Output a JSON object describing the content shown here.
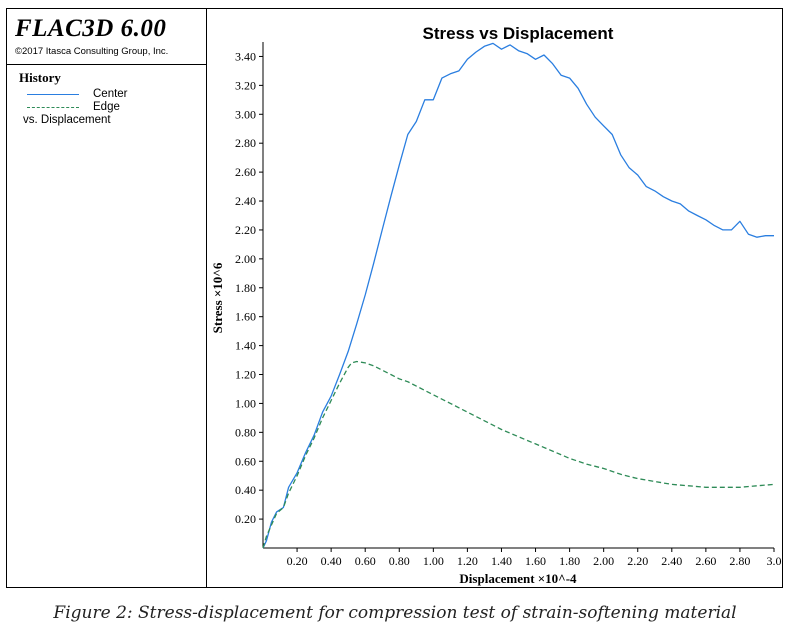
{
  "app": {
    "title": "FLAC3D 6.00",
    "copyright": "©2017 Itasca Consulting Group, Inc."
  },
  "legend": {
    "heading": "History",
    "vs_label": "vs. Displacement"
  },
  "caption": "Figure 2: Stress-displacement for compression test of strain-softening material",
  "colors": {
    "center": "#2a7ee0",
    "edge": "#2e8b57",
    "axis": "#000000"
  },
  "chart_data": {
    "type": "line",
    "title": "Stress vs Displacement",
    "xlabel": "Displacement ×10^-4",
    "ylabel": "Stress ×10^6",
    "xlim": [
      0.0,
      3.0
    ],
    "ylim": [
      0.0,
      3.5
    ],
    "xticks": [
      "0.20",
      "0.40",
      "0.60",
      "0.80",
      "1.00",
      "1.20",
      "1.40",
      "1.60",
      "1.80",
      "2.00",
      "2.20",
      "2.40",
      "2.60",
      "2.80",
      "3.0"
    ],
    "yticks": [
      "0.20",
      "0.40",
      "0.60",
      "0.80",
      "1.00",
      "1.20",
      "1.40",
      "1.60",
      "1.80",
      "2.00",
      "2.20",
      "2.40",
      "2.60",
      "2.80",
      "3.00",
      "3.20",
      "3.40"
    ],
    "grid": false,
    "series": [
      {
        "name": "Center",
        "style": "solid",
        "x": [
          0.0,
          0.02,
          0.05,
          0.08,
          0.12,
          0.15,
          0.2,
          0.25,
          0.3,
          0.35,
          0.4,
          0.45,
          0.5,
          0.55,
          0.6,
          0.65,
          0.7,
          0.75,
          0.8,
          0.85,
          0.9,
          0.95,
          1.0,
          1.05,
          1.1,
          1.15,
          1.2,
          1.25,
          1.3,
          1.35,
          1.4,
          1.45,
          1.5,
          1.55,
          1.6,
          1.65,
          1.7,
          1.75,
          1.8,
          1.85,
          1.9,
          1.95,
          2.0,
          2.05,
          2.1,
          2.15,
          2.2,
          2.25,
          2.3,
          2.35,
          2.4,
          2.45,
          2.5,
          2.55,
          2.6,
          2.65,
          2.7,
          2.75,
          2.8,
          2.85,
          2.9,
          2.95,
          3.0
        ],
        "values": [
          0.0,
          0.05,
          0.18,
          0.25,
          0.28,
          0.42,
          0.52,
          0.66,
          0.78,
          0.94,
          1.05,
          1.2,
          1.36,
          1.55,
          1.75,
          1.97,
          2.2,
          2.43,
          2.65,
          2.86,
          2.95,
          3.1,
          3.1,
          3.25,
          3.28,
          3.3,
          3.38,
          3.43,
          3.47,
          3.49,
          3.45,
          3.48,
          3.44,
          3.42,
          3.38,
          3.41,
          3.35,
          3.27,
          3.25,
          3.18,
          3.07,
          2.98,
          2.92,
          2.86,
          2.72,
          2.63,
          2.58,
          2.5,
          2.47,
          2.43,
          2.4,
          2.38,
          2.33,
          2.3,
          2.27,
          2.23,
          2.2,
          2.2,
          2.26,
          2.17,
          2.15,
          2.16,
          2.16
        ]
      },
      {
        "name": "Edge",
        "style": "dashed",
        "x": [
          0.0,
          0.02,
          0.05,
          0.08,
          0.12,
          0.15,
          0.2,
          0.25,
          0.3,
          0.35,
          0.4,
          0.45,
          0.5,
          0.52,
          0.55,
          0.6,
          0.65,
          0.7,
          0.75,
          0.8,
          0.85,
          0.9,
          0.95,
          1.0,
          1.1,
          1.2,
          1.3,
          1.4,
          1.5,
          1.6,
          1.7,
          1.8,
          1.9,
          2.0,
          2.1,
          2.2,
          2.3,
          2.4,
          2.5,
          2.6,
          2.7,
          2.8,
          2.9,
          3.0
        ],
        "values": [
          0.0,
          0.08,
          0.16,
          0.24,
          0.28,
          0.38,
          0.5,
          0.64,
          0.76,
          0.9,
          1.02,
          1.14,
          1.25,
          1.28,
          1.29,
          1.28,
          1.26,
          1.23,
          1.2,
          1.17,
          1.15,
          1.12,
          1.09,
          1.06,
          1.0,
          0.94,
          0.88,
          0.82,
          0.77,
          0.72,
          0.67,
          0.62,
          0.58,
          0.55,
          0.51,
          0.48,
          0.46,
          0.44,
          0.43,
          0.42,
          0.42,
          0.42,
          0.43,
          0.44
        ]
      }
    ]
  }
}
